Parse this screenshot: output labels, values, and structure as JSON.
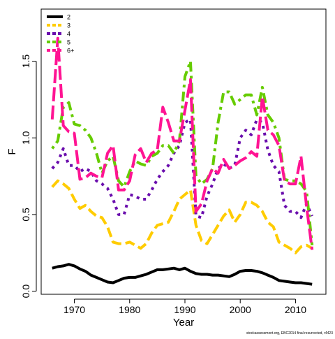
{
  "chart_data": {
    "type": "line",
    "xlabel": "Year",
    "ylabel": "F",
    "xlim": [
      1964.0,
      2015.5
    ],
    "ylim": [
      -0.02,
      1.84
    ],
    "xticks": [
      1970,
      1980,
      1990,
      2000,
      2010
    ],
    "yticks": [
      0.0,
      0.5,
      1.0,
      1.5
    ],
    "ytick_labels": [
      "0.0",
      "0.5",
      "1.0",
      "1.5"
    ],
    "legend_position": "top-left",
    "footnote": "stockassessment.org, EBC2014 final resurrected, r4423",
    "x": [
      1966,
      1967,
      1968,
      1969,
      1970,
      1971,
      1972,
      1973,
      1974,
      1975,
      1976,
      1977,
      1978,
      1979,
      1980,
      1981,
      1982,
      1983,
      1984,
      1985,
      1986,
      1987,
      1988,
      1989,
      1990,
      1991,
      1992,
      1993,
      1994,
      1995,
      1996,
      1997,
      1998,
      1999,
      2000,
      2001,
      2002,
      2003,
      2004,
      2005,
      2006,
      2007,
      2008,
      2009,
      2010,
      2011,
      2012,
      2013
    ],
    "series": [
      {
        "name": "2",
        "color": "#000000",
        "dash": "solid",
        "values": [
          0.15,
          0.16,
          0.165,
          0.175,
          0.165,
          0.145,
          0.13,
          0.105,
          0.09,
          0.075,
          0.06,
          0.055,
          0.07,
          0.085,
          0.09,
          0.09,
          0.1,
          0.11,
          0.125,
          0.14,
          0.14,
          0.145,
          0.15,
          0.14,
          0.15,
          0.13,
          0.115,
          0.11,
          0.11,
          0.105,
          0.105,
          0.1,
          0.095,
          0.11,
          0.13,
          0.135,
          0.135,
          0.13,
          0.12,
          0.105,
          0.09,
          0.07,
          0.065,
          0.06,
          0.055,
          0.055,
          0.05,
          0.045
        ]
      },
      {
        "name": "3",
        "color": "#ffcc00",
        "dash": "long",
        "values": [
          0.68,
          0.72,
          0.7,
          0.67,
          0.6,
          0.54,
          0.56,
          0.52,
          0.49,
          0.48,
          0.42,
          0.32,
          0.31,
          0.31,
          0.32,
          0.3,
          0.28,
          0.31,
          0.38,
          0.43,
          0.44,
          0.45,
          0.52,
          0.6,
          0.63,
          0.66,
          0.43,
          0.33,
          0.31,
          0.37,
          0.43,
          0.49,
          0.53,
          0.45,
          0.5,
          0.58,
          0.58,
          0.56,
          0.52,
          0.45,
          0.42,
          0.32,
          0.3,
          0.28,
          0.25,
          0.29,
          0.3,
          0.28
        ]
      },
      {
        "name": "4",
        "color": "#6a0dad",
        "dash": "dot",
        "values": [
          0.8,
          0.84,
          0.93,
          0.82,
          0.82,
          0.78,
          0.8,
          0.78,
          0.72,
          0.7,
          0.67,
          0.6,
          0.5,
          0.5,
          0.63,
          0.62,
          0.6,
          0.6,
          0.66,
          0.73,
          0.78,
          0.82,
          0.9,
          0.95,
          1.1,
          1.12,
          0.49,
          0.48,
          0.62,
          0.7,
          0.8,
          0.83,
          0.8,
          0.82,
          1.0,
          1.05,
          1.02,
          1.12,
          1.1,
          0.92,
          0.82,
          0.78,
          0.56,
          0.52,
          0.52,
          0.48,
          0.57,
          0.49
        ]
      },
      {
        "name": "5",
        "color": "#66cc00",
        "dash": "dotdash",
        "values": [
          0.93,
          0.98,
          1.2,
          1.23,
          1.09,
          1.08,
          1.05,
          1.0,
          0.9,
          0.77,
          0.85,
          0.88,
          0.72,
          0.68,
          0.78,
          0.85,
          0.83,
          0.82,
          0.88,
          0.9,
          0.95,
          0.95,
          0.9,
          0.98,
          1.4,
          1.5,
          0.75,
          0.7,
          0.73,
          0.8,
          1.1,
          1.3,
          1.3,
          1.22,
          1.25,
          1.28,
          1.28,
          1.15,
          1.33,
          1.15,
          1.1,
          1.0,
          0.73,
          0.72,
          0.72,
          0.7,
          0.65,
          0.3
        ]
      },
      {
        "name": "6+",
        "color": "#ff1493",
        "dash": "longdash",
        "values": [
          1.12,
          1.65,
          1.08,
          1.04,
          1.03,
          0.73,
          0.74,
          0.77,
          0.75,
          0.74,
          0.9,
          0.95,
          0.66,
          0.66,
          0.72,
          0.89,
          0.93,
          0.84,
          0.9,
          0.92,
          1.2,
          1.1,
          0.98,
          0.98,
          1.18,
          1.38,
          0.52,
          0.57,
          0.72,
          0.8,
          0.77,
          0.86,
          0.8,
          0.82,
          0.85,
          0.87,
          0.91,
          0.88,
          1.27,
          1.05,
          1.02,
          0.95,
          0.72,
          0.7,
          0.7,
          0.88,
          0.55,
          0.27
        ]
      }
    ]
  }
}
